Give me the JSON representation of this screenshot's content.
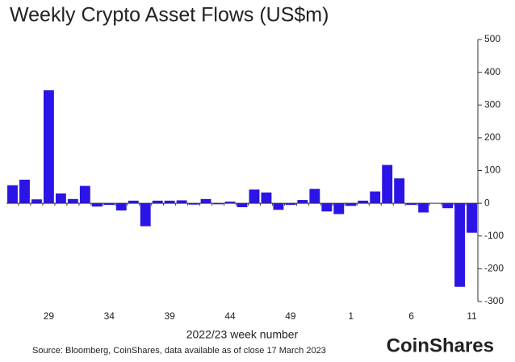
{
  "chart_data": {
    "type": "bar",
    "title": "Weekly Crypto Asset Flows (US$m)",
    "x_label": "2022/23 week number",
    "source": "Source: Bloomberg, CoinShares, data available as of close 17 March 2023",
    "brand": "CoinShares",
    "categories": [
      null,
      null,
      null,
      "29",
      null,
      null,
      null,
      null,
      "34",
      null,
      null,
      null,
      null,
      "39",
      null,
      null,
      null,
      null,
      "44",
      null,
      null,
      null,
      null,
      "49",
      null,
      null,
      null,
      null,
      "1",
      null,
      null,
      null,
      null,
      "6",
      null,
      null,
      null,
      null,
      "11"
    ],
    "values": [
      55,
      72,
      12,
      345,
      30,
      13,
      53,
      -10,
      -5,
      -22,
      8,
      -70,
      8,
      8,
      9,
      -4,
      13,
      -3,
      5,
      -12,
      42,
      33,
      -20,
      -5,
      10,
      44,
      -25,
      -33,
      -8,
      8,
      36,
      117,
      76,
      -5,
      -28,
      0,
      -15,
      -255,
      -90
    ],
    "color": "#2b14e6",
    "ylim": [
      -300,
      500
    ],
    "yticks": [
      -300,
      -200,
      -100,
      0,
      100,
      200,
      300,
      400,
      500
    ]
  }
}
